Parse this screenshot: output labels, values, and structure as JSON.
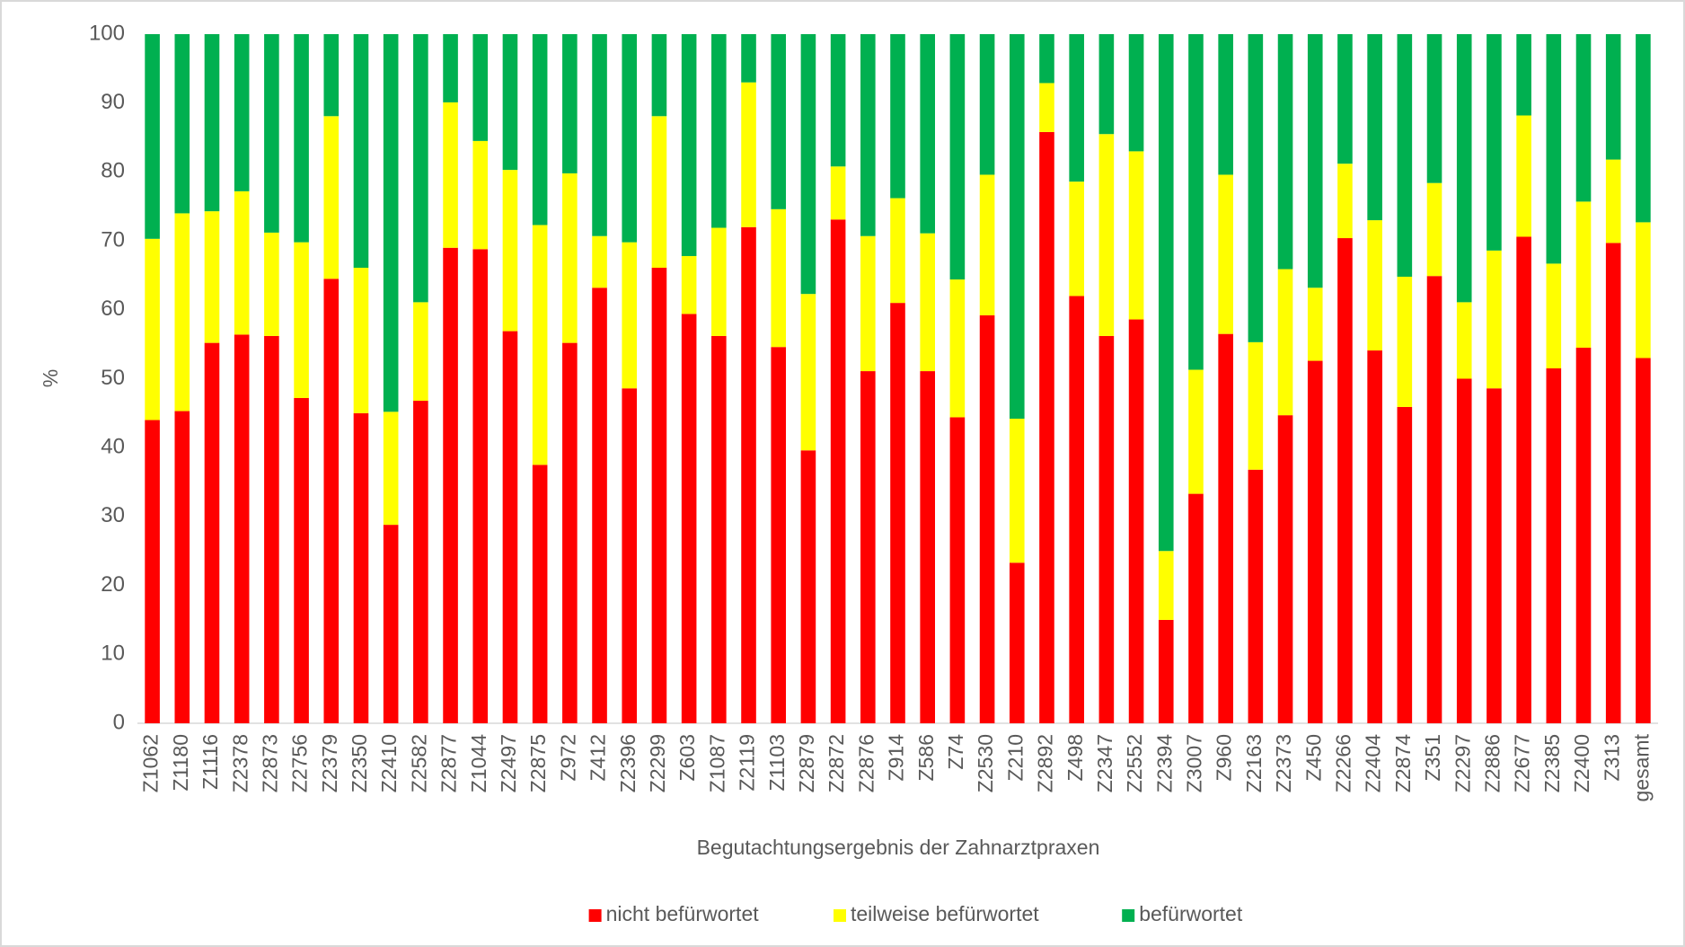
{
  "chart_data": {
    "type": "stacked_bar",
    "x_label": "Begutachtungsergebnis der Zahnarztpraxen",
    "y_label": "%",
    "categories": [
      "Z1062",
      "Z1180",
      "Z1116",
      "Z2378",
      "Z2873",
      "Z2756",
      "Z2379",
      "Z2350",
      "Z2410",
      "Z2582",
      "Z2877",
      "Z1044",
      "Z2497",
      "Z2875",
      "Z972",
      "Z412",
      "Z2396",
      "Z2299",
      "Z603",
      "Z1087",
      "Z2119",
      "Z1103",
      "Z2879",
      "Z2872",
      "Z2876",
      "Z914",
      "Z586",
      "Z74",
      "Z2530",
      "Z210",
      "Z2892",
      "Z498",
      "Z2347",
      "Z2552",
      "Z2394",
      "Z3007",
      "Z960",
      "Z2163",
      "Z2373",
      "Z450",
      "Z2266",
      "Z2404",
      "Z2874",
      "Z351",
      "Z2297",
      "Z2886",
      "Z2677",
      "Z2385",
      "Z2400",
      "Z313",
      "gesamt"
    ],
    "series": [
      {
        "name": "nicht befürwortet",
        "color": "#ff0000",
        "values": [
          44,
          45.3,
          55.2,
          56.4,
          56.2,
          47.2,
          64.5,
          45,
          28.8,
          46.8,
          69,
          68.8,
          56.9,
          37.5,
          55.2,
          63.2,
          48.6,
          66.1,
          59.4,
          56.2,
          72,
          54.6,
          39.6,
          73.1,
          51.1,
          61,
          51.1,
          44.4,
          59.2,
          23.3,
          85.8,
          62,
          56.2,
          58.6,
          15,
          33.3,
          56.5,
          36.8,
          44.7,
          52.6,
          70.4,
          54.1,
          45.9,
          64.9,
          50,
          48.6,
          70.6,
          51.5,
          54.5,
          69.7,
          53
        ]
      },
      {
        "name": "teilweise befürwortet",
        "color": "#ffff00",
        "values": [
          26.3,
          28.7,
          19.1,
          20.8,
          15,
          22.6,
          23.6,
          21.1,
          16.4,
          14.3,
          21.1,
          15.7,
          23.4,
          34.8,
          24.6,
          7.5,
          21.2,
          22,
          8.4,
          15.7,
          21,
          20,
          22.7,
          7.7,
          19.6,
          15.2,
          20,
          20,
          20.4,
          20.9,
          7.1,
          16.6,
          29.3,
          24.4,
          10,
          18,
          23.1,
          18.5,
          21.2,
          10.6,
          10.8,
          18.9,
          18.9,
          13.5,
          11.1,
          20,
          17.6,
          15.2,
          21.2,
          12.1,
          19.7
        ]
      },
      {
        "name": "befürwortet",
        "color": "#00b050",
        "values": [
          29.7,
          26,
          25.7,
          22.8,
          28.8,
          30.2,
          11.9,
          33.9,
          54.8,
          38.9,
          9.9,
          15.5,
          19.7,
          27.7,
          20.2,
          29.3,
          30.2,
          11.9,
          32.2,
          28.1,
          7,
          25.4,
          37.7,
          19.2,
          29.3,
          23.8,
          28.9,
          35.6,
          20.4,
          55.8,
          7.1,
          21.4,
          14.5,
          17,
          75,
          48.7,
          20.4,
          44.7,
          34.1,
          36.8,
          18.8,
          27,
          35.2,
          21.6,
          38.9,
          31.4,
          11.8,
          33.3,
          24.3,
          18.2,
          27.3
        ]
      }
    ],
    "ylim": [
      0,
      100
    ],
    "yticks": [
      0,
      10,
      20,
      30,
      40,
      50,
      60,
      70,
      80,
      90,
      100
    ],
    "legend": "bottom"
  }
}
